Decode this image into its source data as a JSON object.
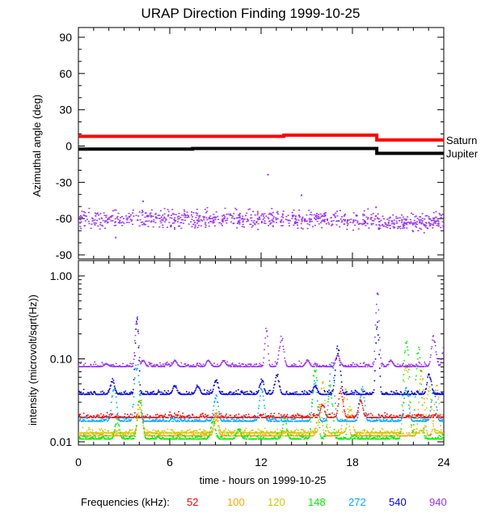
{
  "chart_data": [
    {
      "type": "line",
      "title": "URAP Direction Finding  1999-10-25",
      "ylabel": "Azimuthal angle (deg)",
      "ylim": [
        -95,
        97
      ],
      "xlim": [
        0,
        24
      ],
      "yticks": [
        "90",
        "60",
        "30",
        "0",
        "-30",
        "-60",
        "-90"
      ],
      "ytick_values": [
        90,
        60,
        30,
        0,
        -30,
        -60,
        -90
      ],
      "series": [
        {
          "name": "Saturn",
          "color": "#ff0000",
          "steps": [
            [
              0,
              8
            ],
            [
              13.5,
              9
            ],
            [
              19.6,
              5
            ],
            [
              24,
              5
            ]
          ]
        },
        {
          "name": "Jupiter",
          "color": "#000000",
          "steps": [
            [
              0,
              -2.5
            ],
            [
              7.5,
              -2
            ],
            [
              19.6,
              -6
            ],
            [
              24,
              -6
            ]
          ]
        }
      ],
      "scatter": {
        "name": "940 kHz directions",
        "color": "#9933ff",
        "center": -60,
        "spread": 6,
        "count": 900,
        "outliers": [
          [
            12.4,
            -23
          ],
          [
            4.2,
            -45
          ],
          [
            14.6,
            -40
          ],
          [
            19.5,
            -50
          ],
          [
            2.4,
            -75
          ]
        ]
      }
    },
    {
      "type": "scatter",
      "ylabel": "intensity (microvolt/sqrt(Hz))",
      "xlabel": "time - hours on 1999-10-25",
      "yscale": "log",
      "ylim": [
        0.0098,
        1.2
      ],
      "xlim": [
        0,
        24
      ],
      "xticks": [
        "0",
        "6",
        "12",
        "18",
        "24"
      ],
      "xtick_values": [
        0,
        6,
        12,
        18,
        24
      ],
      "yticks": [
        "1.00",
        "0.10",
        "0.01"
      ],
      "ytick_values": [
        1,
        0.1,
        0.01
      ],
      "legend_title": "Frequencies (kHz):",
      "series": [
        {
          "name": "52",
          "color": "#ff0000",
          "baseline": 0.02,
          "bursts": [
            [
              17.2,
              0.045
            ],
            [
              16.0,
              0.03
            ],
            [
              18.5,
              0.035
            ]
          ]
        },
        {
          "name": "100",
          "color": "#ffa500",
          "baseline": 0.012,
          "bursts": [
            [
              4.0,
              0.035
            ],
            [
              9.0,
              0.02
            ],
            [
              15.8,
              0.03
            ],
            [
              17.5,
              0.05
            ],
            [
              22.5,
              0.08
            ],
            [
              23.5,
              0.05
            ]
          ]
        },
        {
          "name": "120",
          "color": "#cccc00",
          "baseline": 0.013,
          "bursts": [
            [
              4.0,
              0.03
            ],
            [
              9.0,
              0.025
            ],
            [
              16.0,
              0.06
            ],
            [
              17.8,
              0.03
            ],
            [
              21.5,
              0.1
            ],
            [
              23.0,
              0.05
            ]
          ]
        },
        {
          "name": "148",
          "color": "#00ee00",
          "baseline": 0.011,
          "bursts": [
            [
              2.5,
              0.02
            ],
            [
              4.0,
              0.04
            ],
            [
              8.8,
              0.02
            ],
            [
              10.5,
              0.015
            ],
            [
              13.5,
              0.02
            ],
            [
              15.5,
              0.09
            ],
            [
              16.5,
              0.05
            ],
            [
              21.5,
              0.2
            ],
            [
              22.3,
              0.15
            ]
          ]
        },
        {
          "name": "272",
          "color": "#00aaff",
          "baseline": 0.018,
          "bursts": [
            [
              2.3,
              0.05
            ],
            [
              3.8,
              0.1
            ],
            [
              9.0,
              0.04
            ],
            [
              12.0,
              0.05
            ],
            [
              15.5,
              0.06
            ],
            [
              16.6,
              0.1
            ],
            [
              18.6,
              0.05
            ],
            [
              21.5,
              0.05
            ],
            [
              23.3,
              0.05
            ]
          ]
        },
        {
          "name": "540",
          "color": "#0000ee",
          "baseline": 0.038,
          "bursts": [
            [
              2.2,
              0.06
            ],
            [
              3.8,
              0.35
            ],
            [
              6.3,
              0.05
            ],
            [
              7.8,
              0.05
            ],
            [
              9.0,
              0.06
            ],
            [
              12.0,
              0.06
            ],
            [
              13.0,
              0.07
            ],
            [
              15.5,
              0.05
            ],
            [
              17.0,
              0.15
            ],
            [
              19.6,
              0.3
            ],
            [
              23.0,
              0.07
            ]
          ]
        },
        {
          "name": "940",
          "color": "#9933ff",
          "baseline": 0.082,
          "bursts": [
            [
              1.8,
              0.09
            ],
            [
              3.8,
              0.38
            ],
            [
              4.2,
              0.1
            ],
            [
              6.3,
              0.1
            ],
            [
              8.5,
              0.1
            ],
            [
              9.5,
              0.1
            ],
            [
              12.3,
              0.25
            ],
            [
              13.3,
              0.2
            ],
            [
              15.0,
              0.1
            ],
            [
              17.0,
              0.12
            ],
            [
              19.6,
              0.7
            ],
            [
              20.5,
              0.1
            ],
            [
              23.3,
              0.2
            ],
            [
              24.0,
              0.15
            ]
          ]
        }
      ]
    }
  ]
}
